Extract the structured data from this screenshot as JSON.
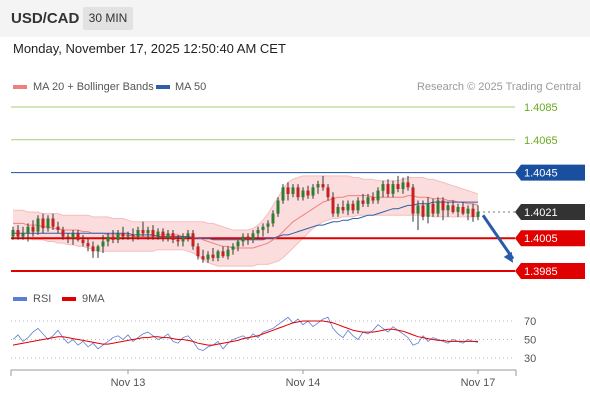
{
  "header": {
    "symbol": "USD/CAD",
    "timeframe": "30 MIN",
    "timestamp": "Monday, November 17, 2025 12:50:40 AM CET"
  },
  "legend": {
    "ma20": {
      "label": "MA 20 + Bollinger Bands",
      "color": "#f08080"
    },
    "ma50": {
      "label": "MA 50",
      "color": "#2f5fa7"
    },
    "credit": "Research © 2025 Trading Central"
  },
  "rsi_legend": {
    "rsi": {
      "label": "RSI",
      "color": "#5b7fd6"
    },
    "ma9": {
      "label": "9MA",
      "color": "#e00000"
    }
  },
  "colors": {
    "resistance_green": "#6aaa1e",
    "pivot_blue": "#1a4fa0",
    "support_red": "#e00000",
    "last_price_box": "#333333",
    "arrow": "#2a5ba8",
    "candle_up": "#2f7d2f",
    "candle_down": "#c62020",
    "bollinger_fill": "#fbd5d5"
  },
  "chart_data": {
    "type": "candlestick",
    "price_axis": {
      "min": 1.3975,
      "max": 1.4095
    },
    "levels": [
      {
        "label": "1.4085",
        "value": 1.4085,
        "kind": "resistance"
      },
      {
        "label": "1.4065",
        "value": 1.4065,
        "kind": "resistance"
      },
      {
        "label": "1.4045",
        "value": 1.4045,
        "kind": "pivot"
      },
      {
        "label": "1.4021",
        "value": 1.4021,
        "kind": "last"
      },
      {
        "label": "1.4005",
        "value": 1.4005,
        "kind": "support"
      },
      {
        "label": "1.3985",
        "value": 1.3985,
        "kind": "support"
      }
    ],
    "x_labels": [
      {
        "label": "Nov 13",
        "index": 23
      },
      {
        "label": "Nov 14",
        "index": 58
      },
      {
        "label": "Nov 17",
        "index": 93
      }
    ],
    "candles": [
      [
        1.4006,
        1.4012,
        1.4004,
        1.401
      ],
      [
        1.401,
        1.4013,
        1.4004,
        1.4006
      ],
      [
        1.4006,
        1.4012,
        1.4004,
        1.4008
      ],
      [
        1.4008,
        1.4014,
        1.4003,
        1.4012
      ],
      [
        1.4012,
        1.4016,
        1.4006,
        1.4009
      ],
      [
        1.4009,
        1.4019,
        1.4007,
        1.4017
      ],
      [
        1.4017,
        1.402,
        1.4008,
        1.4011
      ],
      [
        1.4011,
        1.4019,
        1.4009,
        1.4017
      ],
      [
        1.4017,
        1.402,
        1.401,
        1.4012
      ],
      [
        1.4012,
        1.4015,
        1.4008,
        1.401
      ],
      [
        1.401,
        1.4012,
        1.4004,
        1.4006
      ],
      [
        1.4006,
        1.4008,
        1.4002,
        1.4005
      ],
      [
        1.4005,
        1.401,
        1.4001,
        1.4008
      ],
      [
        1.4008,
        1.401,
        1.4003,
        1.4004
      ],
      [
        1.4004,
        1.4007,
        1.4,
        1.4002
      ],
      [
        1.4002,
        1.4005,
        1.3997,
        1.4
      ],
      [
        1.4,
        1.4003,
        1.3993,
        1.3997
      ],
      [
        1.3997,
        1.4001,
        1.3993,
        1.4
      ],
      [
        1.4,
        1.4007,
        1.3996,
        1.4003
      ],
      [
        1.4003,
        1.4008,
        1.4,
        1.4006
      ],
      [
        1.4006,
        1.401,
        1.4002,
        1.4004
      ],
      [
        1.4004,
        1.401,
        1.4002,
        1.4008
      ],
      [
        1.4008,
        1.4012,
        1.4004,
        1.4006
      ],
      [
        1.4006,
        1.4009,
        1.4004,
        1.4007
      ],
      [
        1.4007,
        1.4011,
        1.4003,
        1.4006
      ],
      [
        1.4006,
        1.4012,
        1.4004,
        1.401
      ],
      [
        1.401,
        1.4015,
        1.4006,
        1.4008
      ],
      [
        1.4008,
        1.4012,
        1.4004,
        1.401
      ],
      [
        1.401,
        1.4013,
        1.4004,
        1.4006
      ],
      [
        1.4006,
        1.4011,
        1.4004,
        1.4009
      ],
      [
        1.4009,
        1.4011,
        1.4003,
        1.4005
      ],
      [
        1.4005,
        1.401,
        1.4003,
        1.4008
      ],
      [
        1.4008,
        1.401,
        1.4002,
        1.4004
      ],
      [
        1.4004,
        1.4007,
        1.4,
        1.4003
      ],
      [
        1.4003,
        1.4008,
        1.4,
        1.4006
      ],
      [
        1.4006,
        1.401,
        1.4003,
        1.4008
      ],
      [
        1.4008,
        1.401,
        1.3998,
        1.4
      ],
      [
        1.4,
        1.4002,
        1.3992,
        1.3994
      ],
      [
        1.3994,
        1.3998,
        1.399,
        1.3992
      ],
      [
        1.3992,
        1.3997,
        1.399,
        1.3995
      ],
      [
        1.3995,
        1.3999,
        1.3991,
        1.3993
      ],
      [
        1.3993,
        1.3998,
        1.3991,
        1.3997
      ],
      [
        1.3997,
        1.4,
        1.3993,
        1.3994
      ],
      [
        1.3994,
        1.4,
        1.3992,
        1.3998
      ],
      [
        1.3998,
        1.4002,
        1.3995,
        1.4
      ],
      [
        1.4,
        1.4004,
        1.3997,
        1.4003
      ],
      [
        1.4003,
        1.4008,
        1.4,
        1.4006
      ],
      [
        1.4006,
        1.4008,
        1.4001,
        1.4004
      ],
      [
        1.4004,
        1.401,
        1.4002,
        1.4008
      ],
      [
        1.4008,
        1.4012,
        1.4005,
        1.401
      ],
      [
        1.401,
        1.4014,
        1.4006,
        1.4012
      ],
      [
        1.4012,
        1.4016,
        1.4008,
        1.4014
      ],
      [
        1.4014,
        1.4022,
        1.4012,
        1.402
      ],
      [
        1.402,
        1.403,
        1.4018,
        1.4028
      ],
      [
        1.4028,
        1.4038,
        1.4026,
        1.4036
      ],
      [
        1.4036,
        1.4039,
        1.4028,
        1.4032
      ],
      [
        1.4032,
        1.4038,
        1.403,
        1.4036
      ],
      [
        1.4036,
        1.4038,
        1.4028,
        1.403
      ],
      [
        1.403,
        1.4036,
        1.4028,
        1.4034
      ],
      [
        1.4034,
        1.4037,
        1.4029,
        1.4031
      ],
      [
        1.4031,
        1.4038,
        1.4029,
        1.4036
      ],
      [
        1.4036,
        1.404,
        1.4032,
        1.4038
      ],
      [
        1.4038,
        1.4043,
        1.4034,
        1.4036
      ],
      [
        1.4036,
        1.4038,
        1.4028,
        1.403
      ],
      [
        1.403,
        1.4033,
        1.4018,
        1.402
      ],
      [
        1.402,
        1.4026,
        1.4018,
        1.4024
      ],
      [
        1.4024,
        1.4028,
        1.402,
        1.4022
      ],
      [
        1.4022,
        1.4028,
        1.4019,
        1.4026
      ],
      [
        1.4026,
        1.4028,
        1.402,
        1.4022
      ],
      [
        1.4022,
        1.403,
        1.402,
        1.4028
      ],
      [
        1.4028,
        1.4032,
        1.4024,
        1.4026
      ],
      [
        1.4026,
        1.4032,
        1.4024,
        1.403
      ],
      [
        1.403,
        1.4033,
        1.4026,
        1.4028
      ],
      [
        1.4028,
        1.4036,
        1.4026,
        1.4034
      ],
      [
        1.4034,
        1.404,
        1.403,
        1.4038
      ],
      [
        1.4038,
        1.4041,
        1.403,
        1.4032
      ],
      [
        1.4032,
        1.404,
        1.403,
        1.4038
      ],
      [
        1.4038,
        1.4043,
        1.4033,
        1.4035
      ],
      [
        1.4035,
        1.4042,
        1.4032,
        1.4039
      ],
      [
        1.4039,
        1.4043,
        1.4034,
        1.4036
      ],
      [
        1.4036,
        1.4038,
        1.4015,
        1.402
      ],
      [
        1.402,
        1.4028,
        1.401,
        1.4025
      ],
      [
        1.4025,
        1.4028,
        1.4016,
        1.4018
      ],
      [
        1.4018,
        1.403,
        1.4014,
        1.4026
      ],
      [
        1.4026,
        1.4029,
        1.4018,
        1.402
      ],
      [
        1.402,
        1.403,
        1.4018,
        1.4028
      ],
      [
        1.4028,
        1.403,
        1.4016,
        1.4022
      ],
      [
        1.4022,
        1.4027,
        1.4018,
        1.4025
      ],
      [
        1.4025,
        1.4028,
        1.402,
        1.4021
      ],
      [
        1.4021,
        1.4026,
        1.4018,
        1.4024
      ],
      [
        1.4024,
        1.4027,
        1.4019,
        1.402
      ],
      [
        1.402,
        1.4025,
        1.4016,
        1.4023
      ],
      [
        1.4023,
        1.4026,
        1.4015,
        1.4018
      ],
      [
        1.4018,
        1.4025,
        1.4016,
        1.4021
      ]
    ],
    "ma20": [
      1.4014,
      1.4014,
      1.4014,
      1.4013,
      1.4013,
      1.4013,
      1.4012,
      1.4012,
      1.4011,
      1.4011,
      1.401,
      1.401,
      1.401,
      1.401,
      1.4009,
      1.4009,
      1.4008,
      1.4008,
      1.4008,
      1.4007,
      1.4007,
      1.4007,
      1.4007,
      1.4007,
      1.4006,
      1.4006,
      1.4006,
      1.4006,
      1.4006,
      1.4007,
      1.4007,
      1.4007,
      1.4007,
      1.4007,
      1.4006,
      1.4006,
      1.4006,
      1.4005,
      1.4004,
      1.4003,
      1.4002,
      1.4001,
      1.4,
      1.4,
      1.3999,
      1.3999,
      1.3999,
      1.3999,
      1.3999,
      1.4,
      1.4001,
      1.4002,
      1.4004,
      1.4006,
      1.4009,
      1.4012,
      1.4015,
      1.4017,
      1.4019,
      1.4021,
      1.4023,
      1.4025,
      1.4027,
      1.4028,
      1.4029,
      1.403,
      1.403,
      1.4031,
      1.4031,
      1.4031,
      1.4031,
      1.4031,
      1.403,
      1.403,
      1.403,
      1.403,
      1.403,
      1.403,
      1.403,
      1.4031,
      1.4031,
      1.403,
      1.403,
      1.403,
      1.4029,
      1.4029,
      1.4029,
      1.4028,
      1.4028,
      1.4027,
      1.4027,
      1.4026,
      1.4026,
      1.4025
    ],
    "ma50": [
      1.4008,
      1.4008,
      1.4008,
      1.4008,
      1.4008,
      1.4008,
      1.4008,
      1.4008,
      1.4008,
      1.4008,
      1.4008,
      1.4008,
      1.4008,
      1.4008,
      1.4008,
      1.4008,
      1.4008,
      1.4008,
      1.4008,
      1.4008,
      1.4008,
      1.4008,
      1.4008,
      1.4008,
      1.4007,
      1.4007,
      1.4007,
      1.4007,
      1.4007,
      1.4006,
      1.4006,
      1.4006,
      1.4006,
      1.4006,
      1.4006,
      1.4006,
      1.4005,
      1.4005,
      1.4005,
      1.4005,
      1.4004,
      1.4004,
      1.4004,
      1.4004,
      1.4004,
      1.4004,
      1.4004,
      1.4004,
      1.4004,
      1.4004,
      1.4004,
      1.4005,
      1.4005,
      1.4006,
      1.4007,
      1.4007,
      1.4008,
      1.4009,
      1.401,
      1.4011,
      1.4012,
      1.4013,
      1.4013,
      1.4014,
      1.4015,
      1.4015,
      1.4016,
      1.4016,
      1.4017,
      1.4017,
      1.4018,
      1.4019,
      1.4019,
      1.402,
      1.4021,
      1.4022,
      1.4023,
      1.4023,
      1.4024,
      1.4025,
      1.4025,
      1.4026,
      1.4026,
      1.4026,
      1.4027,
      1.4027,
      1.4027,
      1.4027,
      1.4027,
      1.4027,
      1.4027,
      1.4027,
      1.4027,
      1.4027
    ],
    "bb_upper": [
      1.4022,
      1.4022,
      1.4022,
      1.4021,
      1.4021,
      1.4021,
      1.402,
      1.402,
      1.402,
      1.402,
      1.4019,
      1.4019,
      1.4019,
      1.4019,
      1.4019,
      1.4019,
      1.4018,
      1.4018,
      1.4018,
      1.4018,
      1.4017,
      1.4017,
      1.4017,
      1.4016,
      1.4015,
      1.4015,
      1.4015,
      1.4015,
      1.4015,
      1.4015,
      1.4015,
      1.4015,
      1.4015,
      1.4015,
      1.4015,
      1.4015,
      1.4015,
      1.4015,
      1.4015,
      1.4014,
      1.4014,
      1.4013,
      1.4012,
      1.4011,
      1.401,
      1.401,
      1.401,
      1.401,
      1.4011,
      1.4013,
      1.4016,
      1.402,
      1.4025,
      1.403,
      1.4035,
      1.4039,
      1.4041,
      1.4042,
      1.4043,
      1.4043,
      1.4043,
      1.4043,
      1.4043,
      1.4043,
      1.4043,
      1.4043,
      1.4043,
      1.4043,
      1.4042,
      1.4042,
      1.4041,
      1.4041,
      1.4041,
      1.404,
      1.404,
      1.404,
      1.404,
      1.404,
      1.4041,
      1.4042,
      1.4042,
      1.4042,
      1.4042,
      1.4041,
      1.4041,
      1.404,
      1.4039,
      1.4038,
      1.4037,
      1.4036,
      1.4035,
      1.4034,
      1.4033,
      1.4032
    ],
    "bb_lower": [
      1.4005,
      1.4005,
      1.4005,
      1.4005,
      1.4004,
      1.4004,
      1.4004,
      1.4003,
      1.4003,
      1.4002,
      1.4002,
      1.4001,
      1.4001,
      1.4,
      1.4,
      1.3999,
      1.3998,
      1.3997,
      1.3997,
      1.3997,
      1.3997,
      1.3997,
      1.3997,
      1.3997,
      1.3997,
      1.3997,
      1.3997,
      1.3997,
      1.3997,
      1.3998,
      1.3998,
      1.3998,
      1.3998,
      1.3998,
      1.3998,
      1.3997,
      1.3996,
      1.3994,
      1.3992,
      1.399,
      1.3989,
      1.3988,
      1.3988,
      1.3988,
      1.3988,
      1.3988,
      1.3988,
      1.3988,
      1.3988,
      1.3989,
      1.3989,
      1.3989,
      1.399,
      1.3991,
      1.3993,
      1.3996,
      1.3999,
      1.4002,
      1.4005,
      1.4008,
      1.4011,
      1.4013,
      1.4015,
      1.4016,
      1.4017,
      1.4017,
      1.4018,
      1.4018,
      1.4018,
      1.4019,
      1.4019,
      1.4019,
      1.4019,
      1.4019,
      1.4019,
      1.4019,
      1.4019,
      1.4019,
      1.4019,
      1.4019,
      1.4019,
      1.4019,
      1.4019,
      1.4019,
      1.4018,
      1.4018,
      1.4018,
      1.4018,
      1.4018,
      1.4018,
      1.4018,
      1.4018,
      1.4018,
      1.4018
    ],
    "forecast_arrow": {
      "from": {
        "index": 94,
        "value": 1.4019
      },
      "to": {
        "index": 100,
        "value": 1.399
      }
    },
    "rsi_axis": {
      "min": 20,
      "max": 80,
      "ticks": [
        70,
        50,
        30
      ]
    },
    "rsi": [
      50,
      55,
      48,
      52,
      58,
      62,
      56,
      50,
      54,
      60,
      52,
      46,
      50,
      44,
      48,
      42,
      46,
      40,
      44,
      48,
      52,
      54,
      50,
      55,
      48,
      52,
      56,
      58,
      54,
      50,
      52,
      56,
      48,
      46,
      52,
      54,
      48,
      40,
      38,
      42,
      44,
      48,
      40,
      46,
      50,
      52,
      54,
      50,
      56,
      52,
      58,
      60,
      62,
      66,
      70,
      74,
      68,
      72,
      66,
      70,
      64,
      68,
      72,
      74,
      62,
      56,
      52,
      60,
      54,
      50,
      58,
      56,
      60,
      66,
      62,
      58,
      64,
      60,
      56,
      52,
      44,
      46,
      54,
      48,
      52,
      50,
      48,
      46,
      50,
      48,
      46,
      50,
      48,
      47
    ],
    "rsi_ma9": [
      44,
      45,
      46,
      47,
      48,
      49,
      50,
      51,
      52,
      53,
      53,
      52,
      51,
      50,
      49,
      48,
      47,
      46,
      45,
      45,
      46,
      47,
      48,
      49,
      50,
      51,
      52,
      52,
      53,
      53,
      52,
      52,
      51,
      50,
      50,
      49,
      48,
      46,
      45,
      44,
      44,
      45,
      46,
      47,
      48,
      49,
      51,
      52,
      53,
      54,
      56,
      58,
      60,
      62,
      64,
      66,
      68,
      69,
      70,
      70,
      70,
      70,
      70,
      69,
      68,
      66,
      64,
      62,
      60,
      59,
      58,
      58,
      58,
      59,
      60,
      61,
      61,
      60,
      59,
      57,
      55,
      53,
      52,
      51,
      50,
      49,
      49,
      48,
      48,
      48,
      48,
      48,
      48,
      48
    ]
  }
}
